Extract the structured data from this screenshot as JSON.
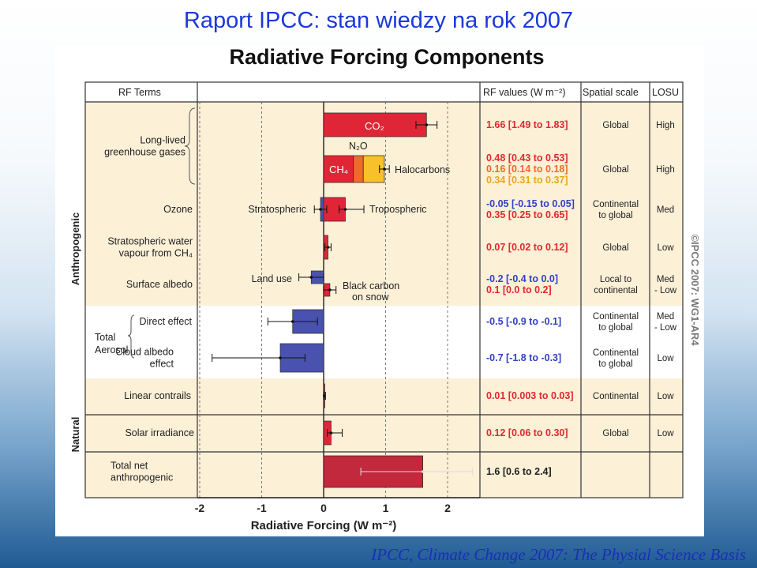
{
  "slide_title": "Raport IPCC: stan wiedzy na rok 2007",
  "credit": "IPCC, Climate Change 2007: The Physial Science Basis",
  "chart_data": {
    "type": "bar",
    "title": "Radiative Forcing Components",
    "xlabel": "Radiative Forcing (W m⁻²)",
    "xlim": [
      -2,
      2
    ],
    "xticks": [
      "-2",
      "-1",
      "0",
      "1",
      "2"
    ],
    "column_headers": {
      "terms": "RF Terms",
      "values": "RF values (W m⁻²)",
      "scale": "Spatial scale",
      "losu": "LOSU"
    },
    "group_labels": {
      "anthropogenic": "Anthropogenic",
      "natural": "Natural"
    },
    "watermark": "©IPCC 2007: WG1-AR4",
    "colors": {
      "red": "#e02636",
      "orange": "#ef6a2b",
      "yellow": "#f6c12a",
      "blue": "#4a52b0",
      "darkred": "#c2293d",
      "band": "#fcf0d7"
    },
    "rows": [
      {
        "id": "ghg",
        "term": [
          "Long-lived",
          "greenhouse gases"
        ],
        "components": [
          {
            "name": "CO₂",
            "value": 1.66,
            "low": 1.49,
            "high": 1.83,
            "color": "red"
          }
        ],
        "rf_values": [
          {
            "text": "1.66 [1.49 to 1.83]",
            "color": "#e0282f"
          }
        ],
        "scale": [
          "Global"
        ],
        "losu": [
          "High"
        ]
      },
      {
        "id": "ghg2",
        "term": [],
        "components": [
          {
            "name": "CH₄",
            "value": 0.48,
            "low": 0.43,
            "high": 0.53,
            "color": "red"
          },
          {
            "name": "N₂O",
            "value": 0.16,
            "low": 0.14,
            "high": 0.18,
            "color": "orange"
          },
          {
            "name": "Halocarbons",
            "value": 0.34,
            "low": 0.31,
            "high": 0.37,
            "color": "yellow"
          }
        ],
        "rf_values": [
          {
            "text": "0.48 [0.43 to 0.53]",
            "color": "#e0282f"
          },
          {
            "text": "0.16 [0.14 to 0.18]",
            "color": "#ef6a2b"
          },
          {
            "text": "0.34 [0.31 to 0.37]",
            "color": "#e6a81e"
          }
        ],
        "scale": [
          "Global"
        ],
        "losu": [
          "High"
        ]
      },
      {
        "id": "ozone",
        "term": [
          "Ozone"
        ],
        "components": [
          {
            "name": "Stratospheric",
            "value": -0.05,
            "low": -0.15,
            "high": 0.05,
            "color": "blue"
          },
          {
            "name": "Tropospheric",
            "value": 0.35,
            "low": 0.25,
            "high": 0.65,
            "color": "red"
          }
        ],
        "rf_values": [
          {
            "text": "-0.05 [-0.15 to 0.05]",
            "color": "#3240c8"
          },
          {
            "text": "0.35 [0.25 to 0.65]",
            "color": "#e0282f"
          }
        ],
        "scale": [
          "Continental",
          "to global"
        ],
        "losu": [
          "Med"
        ]
      },
      {
        "id": "h2o",
        "term": [
          "Stratospheric water",
          "vapour from CH₄"
        ],
        "components": [
          {
            "name": "",
            "value": 0.07,
            "low": 0.02,
            "high": 0.12,
            "color": "red"
          }
        ],
        "rf_values": [
          {
            "text": "0.07 [0.02 to 0.12]",
            "color": "#e0282f"
          }
        ],
        "scale": [
          "Global"
        ],
        "losu": [
          "Low"
        ]
      },
      {
        "id": "albedo",
        "term": [
          "Surface albedo"
        ],
        "components": [
          {
            "name": "Land use",
            "value": -0.2,
            "low": -0.4,
            "high": 0.0,
            "color": "blue"
          },
          {
            "name": "Black carbon on snow",
            "value": 0.1,
            "low": 0.0,
            "high": 0.2,
            "color": "red"
          }
        ],
        "rf_values": [
          {
            "text": "-0.2 [-0.4 to 0.0]",
            "color": "#3240c8"
          },
          {
            "text": "0.1 [0.0 to 0.2]",
            "color": "#e0282f"
          }
        ],
        "scale": [
          "Local to",
          "continental"
        ],
        "losu": [
          "Med",
          "- Low"
        ]
      },
      {
        "id": "aer-direct",
        "term": [
          "Direct effect"
        ],
        "components": [
          {
            "name": "",
            "value": -0.5,
            "low": -0.9,
            "high": -0.1,
            "color": "blue"
          }
        ],
        "rf_values": [
          {
            "text": "-0.5 [-0.9 to -0.1]",
            "color": "#3240c8"
          }
        ],
        "scale": [
          "Continental",
          "to global"
        ],
        "losu": [
          "Med",
          "- Low"
        ]
      },
      {
        "id": "aer-cloud",
        "term": [
          "Cloud albedo",
          "effect"
        ],
        "components": [
          {
            "name": "",
            "value": -0.7,
            "low": -1.8,
            "high": -0.3,
            "color": "blue"
          }
        ],
        "rf_values": [
          {
            "text": "-0.7 [-1.8 to -0.3]",
            "color": "#3240c8"
          }
        ],
        "scale": [
          "Continental",
          "to global"
        ],
        "losu": [
          "Low"
        ]
      },
      {
        "id": "contrails",
        "term": [
          "Linear contrails"
        ],
        "components": [
          {
            "name": "",
            "value": 0.01,
            "low": 0.003,
            "high": 0.03,
            "color": "red"
          }
        ],
        "rf_values": [
          {
            "text": "0.01 [0.003 to 0.03]",
            "color": "#e0282f"
          }
        ],
        "scale": [
          "Continental"
        ],
        "losu": [
          "Low"
        ]
      },
      {
        "id": "solar",
        "term": [
          "Solar irradiance"
        ],
        "components": [
          {
            "name": "",
            "value": 0.12,
            "low": 0.06,
            "high": 0.3,
            "color": "red"
          }
        ],
        "rf_values": [
          {
            "text": "0.12 [0.06 to 0.30]",
            "color": "#e0282f"
          }
        ],
        "scale": [
          "Global"
        ],
        "losu": [
          "Low"
        ]
      },
      {
        "id": "total",
        "term": [
          "Total net",
          "anthropogenic"
        ],
        "components": [
          {
            "name": "",
            "value": 1.6,
            "low": 0.6,
            "high": 2.4,
            "color": "darkred"
          }
        ],
        "rf_values": [
          {
            "text": "1.6 [0.6 to 2.4]",
            "color": "#222222"
          }
        ],
        "scale": [],
        "losu": []
      }
    ],
    "aerosol_label": [
      "Total",
      "Aerosol"
    ]
  }
}
